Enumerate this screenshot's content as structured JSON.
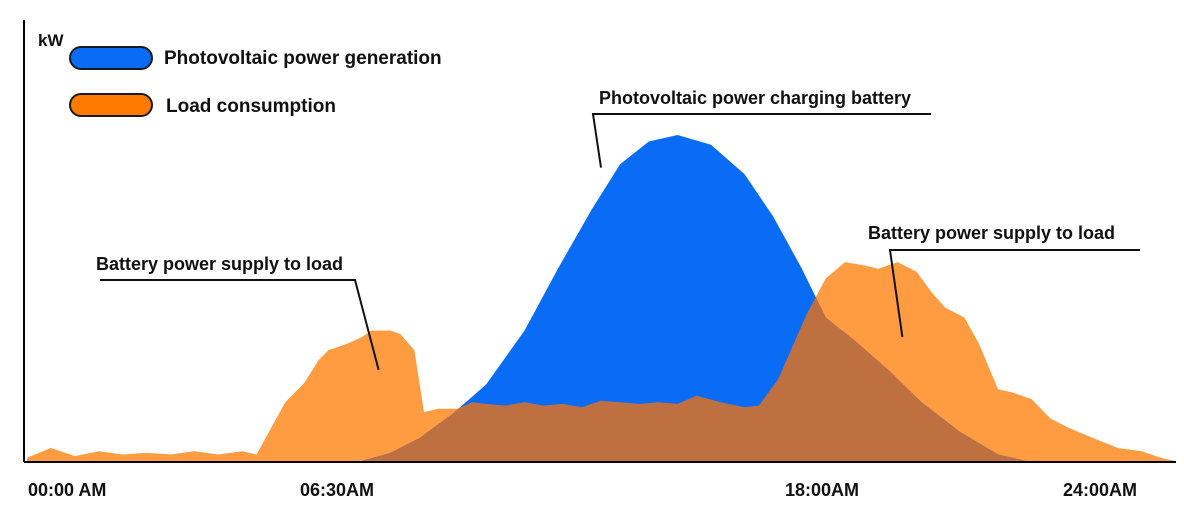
{
  "chart_data": {
    "type": "area",
    "title": "",
    "xlabel": "",
    "ylabel": "kW",
    "x_unit": "hours",
    "xlim": [
      0,
      24
    ],
    "ylim": [
      0,
      10
    ],
    "grid": false,
    "legend_placement": "top-left",
    "ticks": [
      {
        "x": 0,
        "label": "00:00 AM"
      },
      {
        "x": 6.5,
        "label": "06:30AM"
      },
      {
        "x": 18,
        "label": "18:00AM"
      },
      {
        "x": 24,
        "label": "24:00AM"
      }
    ],
    "legend": [
      {
        "label": "Photovoltaic power generation",
        "color": "#0A6CF5"
      },
      {
        "label": "Load consumption",
        "color": "#FF7A00"
      }
    ],
    "series": [
      {
        "name": "Photovoltaic power generation",
        "color": "#0A6CF5",
        "x": [
          7.0,
          7.6,
          8.2,
          8.9,
          9.6,
          10.4,
          11.1,
          11.8,
          12.4,
          13.0,
          13.6,
          14.3,
          15.0,
          15.6,
          16.2,
          16.7,
          17.3,
          18.0,
          18.7,
          19.5,
          20.3,
          20.9
        ],
        "y": [
          0.0,
          0.25,
          0.7,
          1.45,
          2.35,
          4.0,
          5.9,
          7.7,
          9.1,
          9.8,
          10.0,
          9.7,
          8.8,
          7.5,
          5.9,
          4.4,
          3.7,
          2.8,
          1.8,
          0.9,
          0.2,
          0.0
        ]
      },
      {
        "name": "Load consumption",
        "color": "#FF7A00",
        "x": [
          0.0,
          0.5,
          1.0,
          1.5,
          2.0,
          2.5,
          3.0,
          3.5,
          4.0,
          4.5,
          4.8,
          5.1,
          5.4,
          5.8,
          6.1,
          6.3,
          6.7,
          7.0,
          7.2,
          7.6,
          7.8,
          8.1,
          8.3,
          8.6,
          9.0,
          9.3,
          9.6,
          10.0,
          10.4,
          10.8,
          11.2,
          11.6,
          12.0,
          12.4,
          12.8,
          13.2,
          13.6,
          14.0,
          14.5,
          15.0,
          15.3,
          15.7,
          16.0,
          16.3,
          16.7,
          17.1,
          17.5,
          17.8,
          18.2,
          18.6,
          18.9,
          19.2,
          19.6,
          19.9,
          20.3,
          20.6,
          21.0,
          21.4,
          21.8,
          22.3,
          22.8,
          23.3,
          23.7,
          24.0
        ],
        "y": [
          0.1,
          0.4,
          0.15,
          0.3,
          0.2,
          0.25,
          0.2,
          0.3,
          0.2,
          0.3,
          0.2,
          1.0,
          1.8,
          2.4,
          3.1,
          3.4,
          3.6,
          3.8,
          4.0,
          4.0,
          3.9,
          3.4,
          1.5,
          1.6,
          1.6,
          1.8,
          1.75,
          1.7,
          1.8,
          1.7,
          1.75,
          1.65,
          1.85,
          1.8,
          1.75,
          1.8,
          1.75,
          2.0,
          1.8,
          1.65,
          1.7,
          2.5,
          3.5,
          4.5,
          5.6,
          6.1,
          6.0,
          5.9,
          6.1,
          5.8,
          5.2,
          4.7,
          4.4,
          3.6,
          2.2,
          2.1,
          1.9,
          1.3,
          1.0,
          0.7,
          0.4,
          0.3,
          0.1,
          0.0
        ]
      }
    ],
    "overlap_color": "#BE7041",
    "annotations": [
      {
        "label": "Photovoltaic power charging battery",
        "x": 12.0,
        "y": 9.0
      },
      {
        "label": "Battery power supply to load",
        "x": 7.35,
        "y": 2.8
      },
      {
        "label": "Battery power supply to load",
        "x": 18.3,
        "y": 3.8
      }
    ]
  }
}
